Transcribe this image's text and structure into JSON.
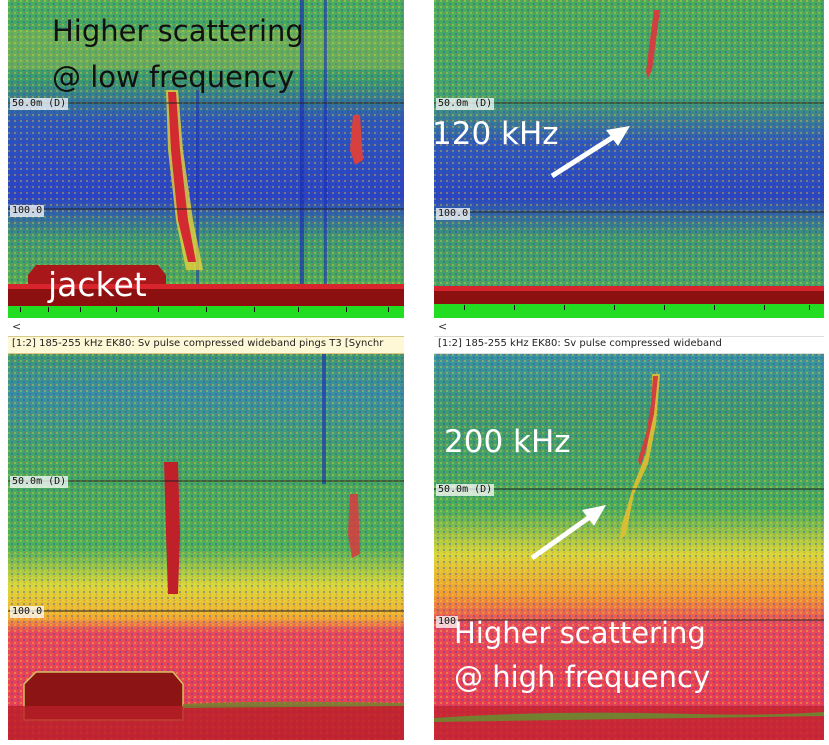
{
  "panels": {
    "low_freq_top": {
      "caption_line1": "Higher scattering",
      "caption_line2": "@ low frequency",
      "annotation": "jacket",
      "depth_label_1": "50.0m (D)",
      "depth_label_2": "100.0"
    },
    "top_right": {
      "frequency_label": "120 kHz",
      "depth_label_1": "50.0m (D)",
      "depth_label_2": "100.0"
    },
    "bottom_left": {
      "depth_label_1": "50.0m (D)",
      "depth_label_2": "100.0"
    },
    "bottom_right": {
      "frequency_label": "200 kHz",
      "caption_line1": "Higher scattering",
      "caption_line2": "@ high frequency",
      "depth_label_1": "50.0m (D)",
      "depth_label_2": "100"
    }
  },
  "toolbars": {
    "scroll_left_glyph": "<",
    "left_title": "[1:2] 185-255 kHz EK80: Sv pulse compressed wideband pings T3 [Synchr",
    "right_title": "[1:2] 185-255 kHz EK80: Sv pulse compressed wideband"
  },
  "colors": {
    "echo_blue": "#2a3fd0",
    "echo_green": "#3aa860",
    "echo_yellow": "#e8dc3a",
    "echo_red": "#c8202a",
    "bottom_red": "#8c1010",
    "seabed_green": "#22dd22",
    "arrow": "#ffffff"
  }
}
